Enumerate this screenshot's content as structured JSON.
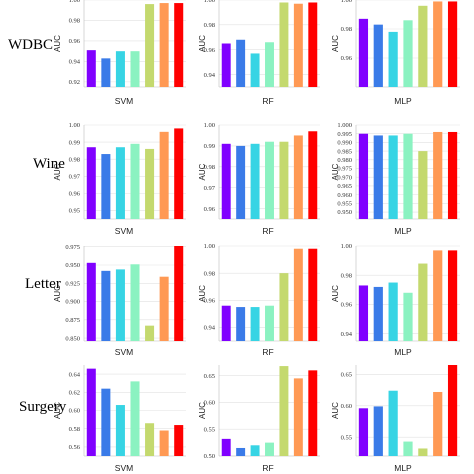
{
  "row_labels": [
    "WDBC",
    "Wine",
    "Letter",
    "Surgery"
  ],
  "series_colors": [
    "#8000ff",
    "#3a7be8",
    "#37d4e4",
    "#8bf2c1",
    "#c4d96e",
    "#ff9954",
    "#ff0000"
  ],
  "chart_data": [
    {
      "type": "bar",
      "row": "WDBC",
      "xlabel": "SVM",
      "ylabel": "AUC",
      "ylim": [
        0.915,
        1.0
      ],
      "yticks": [
        "0.92",
        "0.94",
        "0.96",
        "0.98",
        "1.00"
      ],
      "tick_values": [
        0.92,
        0.94,
        0.96,
        0.98,
        1.0
      ],
      "values": [
        0.951,
        0.943,
        0.95,
        0.95,
        0.996,
        0.997,
        0.997
      ]
    },
    {
      "type": "bar",
      "row": "WDBC",
      "xlabel": "RF",
      "ylabel": "AUC",
      "ylim": [
        0.93,
        1.0
      ],
      "yticks": [
        "0.94",
        "0.96",
        "0.98",
        "1.00"
      ],
      "tick_values": [
        0.94,
        0.96,
        0.98,
        1.0
      ],
      "values": [
        0.965,
        0.968,
        0.957,
        0.966,
        0.998,
        0.997,
        0.998
      ]
    },
    {
      "type": "bar",
      "row": "WDBC",
      "xlabel": "MLP",
      "ylabel": "AUC",
      "ylim": [
        0.94,
        1.0
      ],
      "yticks": [
        "0.96",
        "0.98",
        "1.00"
      ],
      "tick_values": [
        0.96,
        0.98,
        1.0
      ],
      "values": [
        0.987,
        0.983,
        0.978,
        0.986,
        0.996,
        0.999,
        0.999
      ]
    },
    {
      "type": "bar",
      "row": "Wine",
      "xlabel": "SVM",
      "ylabel": "AUC",
      "ylim": [
        0.945,
        1.0
      ],
      "yticks": [
        "0.95",
        "0.96",
        "0.97",
        "0.98",
        "0.99",
        "1.00"
      ],
      "tick_values": [
        0.95,
        0.96,
        0.97,
        0.98,
        0.99,
        1.0
      ],
      "values": [
        0.987,
        0.983,
        0.987,
        0.989,
        0.986,
        0.996,
        0.998
      ]
    },
    {
      "type": "bar",
      "row": "Wine",
      "xlabel": "RF",
      "ylabel": "AUC",
      "ylim": [
        0.955,
        1.0
      ],
      "yticks": [
        "0.96",
        "0.97",
        "0.98",
        "0.99",
        "1.00"
      ],
      "tick_values": [
        0.96,
        0.97,
        0.98,
        0.99,
        1.0
      ],
      "values": [
        0.991,
        0.99,
        0.991,
        0.992,
        0.992,
        0.995,
        0.997
      ]
    },
    {
      "type": "bar",
      "row": "Wine",
      "xlabel": "MLP",
      "ylabel": "AUC",
      "ylim": [
        0.946,
        1.0
      ],
      "yticks": [
        "0.950",
        "0.955",
        "0.960",
        "0.965",
        "0.970",
        "0.975",
        "0.980",
        "0.985",
        "0.990",
        "0.995",
        "1.000"
      ],
      "tick_values": [
        0.95,
        0.955,
        0.96,
        0.965,
        0.97,
        0.975,
        0.98,
        0.985,
        0.99,
        0.995,
        1.0
      ],
      "values": [
        0.995,
        0.994,
        0.994,
        0.995,
        0.985,
        0.996,
        0.996
      ]
    },
    {
      "type": "bar",
      "row": "Letter",
      "xlabel": "SVM",
      "ylabel": "AUC",
      "ylim": [
        0.846,
        0.976
      ],
      "yticks": [
        "0.850",
        "0.875",
        "0.900",
        "0.925",
        "0.950",
        "0.975"
      ],
      "tick_values": [
        0.85,
        0.875,
        0.9,
        0.925,
        0.95,
        0.975
      ],
      "values": [
        0.953,
        0.942,
        0.944,
        0.951,
        0.867,
        0.934,
        0.976
      ]
    },
    {
      "type": "bar",
      "row": "Letter",
      "xlabel": "RF",
      "ylabel": "AUC",
      "ylim": [
        0.93,
        1.0
      ],
      "yticks": [
        "0.94",
        "0.96",
        "0.98",
        "1.00"
      ],
      "tick_values": [
        0.94,
        0.96,
        0.98,
        1.0
      ],
      "values": [
        0.956,
        0.955,
        0.955,
        0.956,
        0.98,
        0.998,
        0.998
      ]
    },
    {
      "type": "bar",
      "row": "Letter",
      "xlabel": "MLP",
      "ylabel": "AUC",
      "ylim": [
        0.935,
        1.0
      ],
      "yticks": [
        "0.94",
        "0.96",
        "0.98",
        "1.00"
      ],
      "tick_values": [
        0.94,
        0.96,
        0.98,
        1.0
      ],
      "values": [
        0.973,
        0.972,
        0.975,
        0.968,
        0.988,
        0.997,
        0.997
      ]
    },
    {
      "type": "bar",
      "row": "Surgery",
      "xlabel": "SVM",
      "ylabel": "AUC",
      "ylim": [
        0.55,
        0.65
      ],
      "yticks": [
        "0.56",
        "0.58",
        "0.60",
        "0.62",
        "0.64"
      ],
      "tick_values": [
        0.56,
        0.58,
        0.6,
        0.62,
        0.64
      ],
      "values": [
        0.646,
        0.624,
        0.606,
        0.632,
        0.586,
        0.578,
        0.584
      ]
    },
    {
      "type": "bar",
      "row": "Surgery",
      "xlabel": "RF",
      "ylabel": "AUC",
      "ylim": [
        0.5,
        0.67
      ],
      "yticks": [
        "0.50",
        "0.55",
        "0.60",
        "0.65"
      ],
      "tick_values": [
        0.5,
        0.55,
        0.6,
        0.65
      ],
      "values": [
        0.532,
        0.515,
        0.52,
        0.525,
        0.668,
        0.645,
        0.66
      ]
    },
    {
      "type": "bar",
      "row": "Surgery",
      "xlabel": "MLP",
      "ylabel": "AUC",
      "ylim": [
        0.52,
        0.665
      ],
      "yticks": [
        "0.55",
        "0.60",
        "0.65"
      ],
      "tick_values": [
        0.55,
        0.6,
        0.65
      ],
      "values": [
        0.596,
        0.599,
        0.624,
        0.543,
        0.532,
        0.622,
        0.666
      ]
    }
  ]
}
